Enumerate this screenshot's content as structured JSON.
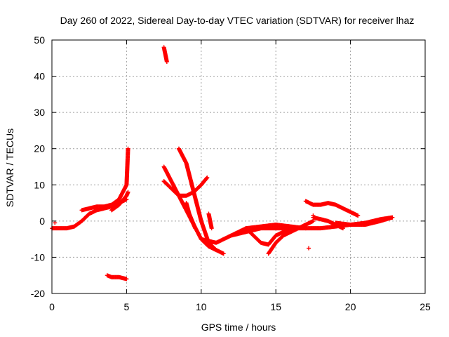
{
  "chart_data": {
    "type": "scatter",
    "title": "Day 260 of 2022, Sidereal Day-to-day VTEC variation (SDTVAR) for receiver lhaz",
    "xlabel": "GPS time / hours",
    "ylabel": "SDTVAR / TECUs",
    "xlim": [
      0,
      25
    ],
    "ylim": [
      -20,
      50
    ],
    "xticks": [
      0,
      5,
      10,
      15,
      20,
      25
    ],
    "yticks": [
      -20,
      -10,
      0,
      10,
      20,
      30,
      40,
      50
    ],
    "grid": true,
    "marker": "+",
    "color": "#ff0000",
    "series": [
      {
        "name": "arc-early-low",
        "x": [
          0,
          0.5,
          1,
          1.5,
          2,
          2.5,
          3,
          3.5,
          4,
          4.5,
          5
        ],
        "y": [
          -2,
          -2,
          -2,
          -1.5,
          0,
          2,
          3,
          3.5,
          4,
          5,
          6
        ]
      },
      {
        "name": "arc-early-high",
        "x": [
          2,
          2.5,
          3,
          3.5,
          4,
          4.5,
          5,
          5.1
        ],
        "y": [
          3,
          3.5,
          4,
          4,
          4.5,
          6,
          10,
          20
        ]
      },
      {
        "name": "arc-early-mid",
        "x": [
          4,
          4.5,
          5,
          5.1
        ],
        "y": [
          3,
          4.5,
          7,
          8
        ]
      },
      {
        "name": "arc-negative",
        "x": [
          3.7,
          4,
          4.5,
          5
        ],
        "y": [
          -15,
          -15.5,
          -15.5,
          -16
        ]
      },
      {
        "name": "spike",
        "x": [
          7.5,
          7.6,
          7.7
        ],
        "y": [
          48,
          46,
          44
        ]
      },
      {
        "name": "arc-a",
        "x": [
          7.5,
          8,
          8.5,
          9,
          9.5,
          10,
          10.5,
          11,
          11.5
        ],
        "y": [
          15,
          11,
          7,
          3,
          -1,
          -5,
          -7,
          -8,
          -9
        ]
      },
      {
        "name": "arc-b",
        "x": [
          7.5,
          8,
          8.5,
          9,
          9.5,
          10,
          10.4
        ],
        "y": [
          11,
          9,
          7,
          7,
          8,
          10,
          12
        ]
      },
      {
        "name": "arc-c",
        "x": [
          8.5,
          9,
          9.5,
          10,
          10.5,
          11
        ],
        "y": [
          20,
          16,
          8,
          0,
          -6,
          -8
        ]
      },
      {
        "name": "arc-d",
        "x": [
          9,
          9.2,
          9.4,
          9.6
        ],
        "y": [
          5,
          2,
          0,
          -2
        ]
      },
      {
        "name": "arc-e",
        "x": [
          10.5,
          10.6,
          10.7
        ],
        "y": [
          2,
          0,
          -2
        ]
      },
      {
        "name": "arc-f",
        "x": [
          10,
          11,
          12,
          13,
          14,
          15,
          16,
          17,
          18,
          19,
          20,
          21,
          22,
          22.8
        ],
        "y": [
          -5,
          -6,
          -4,
          -2,
          -1.5,
          -1,
          -1.5,
          -2,
          -2,
          -1.5,
          -1,
          -1,
          0,
          1
        ]
      },
      {
        "name": "arc-g",
        "x": [
          12,
          13,
          14,
          15,
          16,
          17
        ],
        "y": [
          -4,
          -3,
          -2,
          -2,
          -2,
          -2
        ]
      },
      {
        "name": "arc-h",
        "x": [
          13,
          13.5,
          14,
          14.5,
          15,
          16
        ],
        "y": [
          -2,
          -4,
          -6,
          -6.5,
          -4,
          -2
        ]
      },
      {
        "name": "arc-i",
        "x": [
          14.5,
          15,
          15.5,
          16,
          16.5,
          17,
          17.5
        ],
        "y": [
          -9,
          -6,
          -4,
          -3,
          -2,
          -1,
          0
        ]
      },
      {
        "name": "arc-j",
        "x": [
          17,
          17.5,
          18,
          18.5,
          19,
          19.5,
          20,
          20.5
        ],
        "y": [
          5.5,
          4.5,
          4.5,
          5,
          4.5,
          3.5,
          2.5,
          1.5
        ]
      },
      {
        "name": "arc-k",
        "x": [
          17.5,
          18,
          18.5,
          19,
          19.5
        ],
        "y": [
          1,
          0.5,
          0,
          -1,
          -2
        ]
      },
      {
        "name": "arc-l",
        "x": [
          19,
          20,
          21,
          22,
          22.8
        ],
        "y": [
          -0.5,
          -1,
          -0.5,
          0.5,
          1
        ]
      }
    ],
    "outliers": {
      "x": [
        0.2,
        17.2,
        17.5
      ],
      "y": [
        -0.5,
        -7.5,
        1.5
      ]
    }
  }
}
